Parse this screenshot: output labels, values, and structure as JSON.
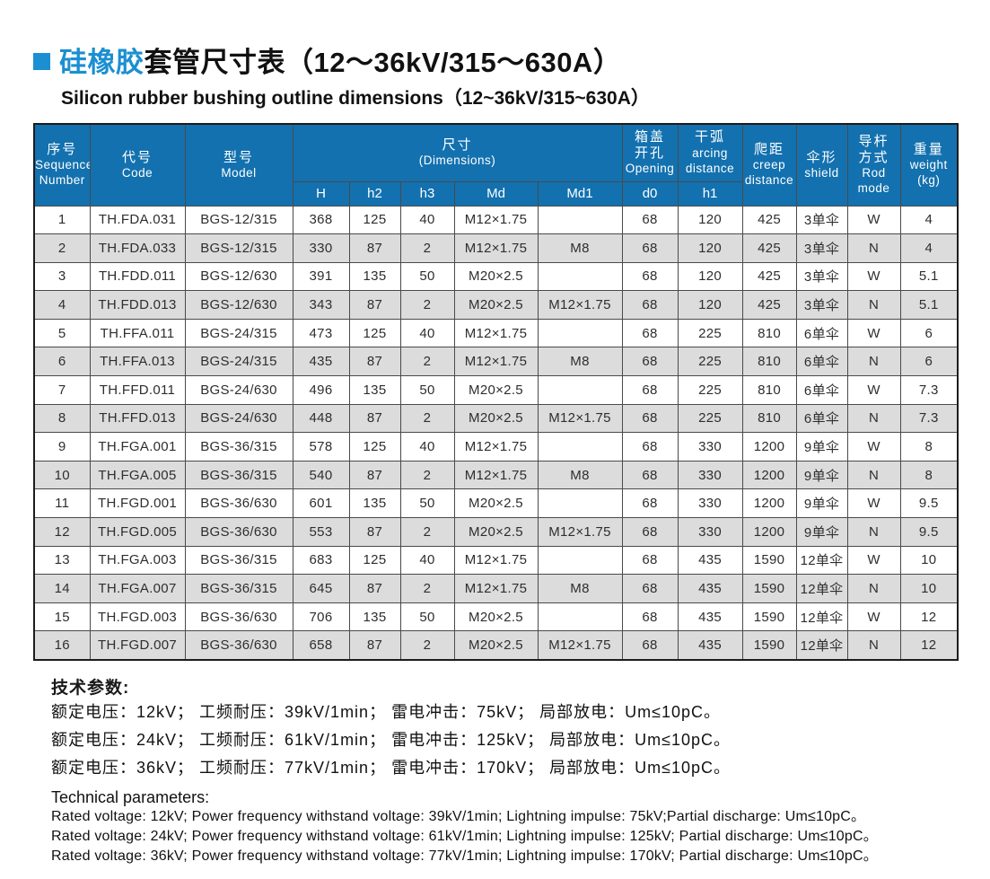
{
  "colors": {
    "accent_blue": "#1b8fd1",
    "header_blue": "#1371af",
    "row_alt_gray": "#dcdcdc"
  },
  "page": {
    "title_highlight": "硅橡胶",
    "title_rest": "套管尺寸表（12～36kV/315～630A）",
    "subtitle": "Silicon rubber bushing outline dimensions（12~36kV/315~630A）"
  },
  "table": {
    "header": {
      "seq": [
        "序号",
        "Sequence",
        "Number"
      ],
      "code": [
        "代号",
        "Code"
      ],
      "model": [
        "型号",
        "Model"
      ],
      "dims": [
        "尺寸",
        "(Dimensions)"
      ],
      "opening": [
        "箱盖",
        "开孔",
        "Opening"
      ],
      "arcing": [
        "干弧",
        "arcing",
        "distance"
      ],
      "creep": [
        "爬距",
        "creep",
        "distance"
      ],
      "shield": [
        "伞形",
        "shield"
      ],
      "rod": [
        "导杆",
        "方式",
        "Rod",
        "mode"
      ],
      "weight": [
        "重量",
        "weight",
        "(kg)"
      ]
    },
    "subheader": [
      "H",
      "h2",
      "h3",
      "Md",
      "Md1",
      "d0",
      "h1"
    ],
    "rows": [
      [
        "1",
        "TH.FDA.031",
        "BGS-12/315",
        "368",
        "125",
        "40",
        "M12×1.75",
        "",
        "68",
        "120",
        "425",
        "3单伞",
        "W",
        "4"
      ],
      [
        "2",
        "TH.FDA.033",
        "BGS-12/315",
        "330",
        "87",
        "2",
        "M12×1.75",
        "M8",
        "68",
        "120",
        "425",
        "3单伞",
        "N",
        "4"
      ],
      [
        "3",
        "TH.FDD.011",
        "BGS-12/630",
        "391",
        "135",
        "50",
        "M20×2.5",
        "",
        "68",
        "120",
        "425",
        "3单伞",
        "W",
        "5.1"
      ],
      [
        "4",
        "TH.FDD.013",
        "BGS-12/630",
        "343",
        "87",
        "2",
        "M20×2.5",
        "M12×1.75",
        "68",
        "120",
        "425",
        "3单伞",
        "N",
        "5.1"
      ],
      [
        "5",
        "TH.FFA.011",
        "BGS-24/315",
        "473",
        "125",
        "40",
        "M12×1.75",
        "",
        "68",
        "225",
        "810",
        "6单伞",
        "W",
        "6"
      ],
      [
        "6",
        "TH.FFA.013",
        "BGS-24/315",
        "435",
        "87",
        "2",
        "M12×1.75",
        "M8",
        "68",
        "225",
        "810",
        "6单伞",
        "N",
        "6"
      ],
      [
        "7",
        "TH.FFD.011",
        "BGS-24/630",
        "496",
        "135",
        "50",
        "M20×2.5",
        "",
        "68",
        "225",
        "810",
        "6单伞",
        "W",
        "7.3"
      ],
      [
        "8",
        "TH.FFD.013",
        "BGS-24/630",
        "448",
        "87",
        "2",
        "M20×2.5",
        "M12×1.75",
        "68",
        "225",
        "810",
        "6单伞",
        "N",
        "7.3"
      ],
      [
        "9",
        "TH.FGA.001",
        "BGS-36/315",
        "578",
        "125",
        "40",
        "M12×1.75",
        "",
        "68",
        "330",
        "1200",
        "9单伞",
        "W",
        "8"
      ],
      [
        "10",
        "TH.FGA.005",
        "BGS-36/315",
        "540",
        "87",
        "2",
        "M12×1.75",
        "M8",
        "68",
        "330",
        "1200",
        "9单伞",
        "N",
        "8"
      ],
      [
        "11",
        "TH.FGD.001",
        "BGS-36/630",
        "601",
        "135",
        "50",
        "M20×2.5",
        "",
        "68",
        "330",
        "1200",
        "9单伞",
        "W",
        "9.5"
      ],
      [
        "12",
        "TH.FGD.005",
        "BGS-36/630",
        "553",
        "87",
        "2",
        "M20×2.5",
        "M12×1.75",
        "68",
        "330",
        "1200",
        "9单伞",
        "N",
        "9.5"
      ],
      [
        "13",
        "TH.FGA.003",
        "BGS-36/315",
        "683",
        "125",
        "40",
        "M12×1.75",
        "",
        "68",
        "435",
        "1590",
        "12单伞",
        "W",
        "10"
      ],
      [
        "14",
        "TH.FGA.007",
        "BGS-36/315",
        "645",
        "87",
        "2",
        "M12×1.75",
        "M8",
        "68",
        "435",
        "1590",
        "12单伞",
        "N",
        "10"
      ],
      [
        "15",
        "TH.FGD.003",
        "BGS-36/630",
        "706",
        "135",
        "50",
        "M20×2.5",
        "",
        "68",
        "435",
        "1590",
        "12单伞",
        "W",
        "12"
      ],
      [
        "16",
        "TH.FGD.007",
        "BGS-36/630",
        "658",
        "87",
        "2",
        "M20×2.5",
        "M12×1.75",
        "68",
        "435",
        "1590",
        "12单伞",
        "N",
        "12"
      ]
    ]
  },
  "footer": {
    "heading_zh": "技术参数:",
    "lines_zh": [
      "额定电压：12kV； 工频耐压：39kV/1min； 雷电冲击：75kV； 局部放电：Um≤10pC。",
      "额定电压：24kV； 工频耐压：61kV/1min； 雷电冲击：125kV； 局部放电：Um≤10pC。",
      "额定电压：36kV； 工频耐压：77kV/1min； 雷电冲击：170kV； 局部放电：Um≤10pC。"
    ],
    "heading_en": "Technical parameters:",
    "lines_en": [
      "Rated voltage: 12kV; Power frequency withstand voltage: 39kV/1min; Lightning impulse: 75kV;Partial discharge: Um≤10pC。",
      "Rated voltage: 24kV; Power frequency withstand voltage: 61kV/1min; Lightning impulse: 125kV; Partial discharge: Um≤10pC。",
      "Rated voltage: 36kV; Power frequency withstand voltage: 77kV/1min; Lightning impulse: 170kV; Partial discharge: Um≤10pC。"
    ]
  }
}
